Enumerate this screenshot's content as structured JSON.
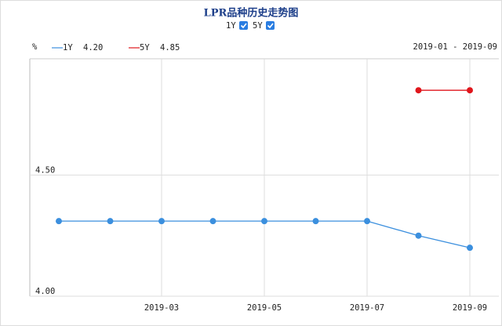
{
  "chart_data": {
    "type": "line",
    "title": "LPR品种历史走势图",
    "y_label": "%",
    "date_range": "2019-01 - 2019-09",
    "categories": [
      null,
      null,
      "2019-03",
      null,
      "2019-05",
      null,
      "2019-07",
      null,
      "2019-09"
    ],
    "series": [
      {
        "name": "1Y",
        "color": "#3b8fde",
        "latest": "4.20",
        "values": [
          4.31,
          4.31,
          4.31,
          4.31,
          4.31,
          4.31,
          4.31,
          4.25,
          4.2
        ]
      },
      {
        "name": "5Y",
        "color": "#e0161c",
        "latest": "4.85",
        "values": [
          null,
          null,
          null,
          null,
          null,
          null,
          null,
          4.85,
          4.85
        ]
      }
    ],
    "ylim": [
      4.0,
      4.98
    ],
    "yticks": [
      {
        "value": 4.0,
        "label": "4.00"
      },
      {
        "value": 4.5,
        "label": "4.50"
      }
    ],
    "grid": true
  }
}
